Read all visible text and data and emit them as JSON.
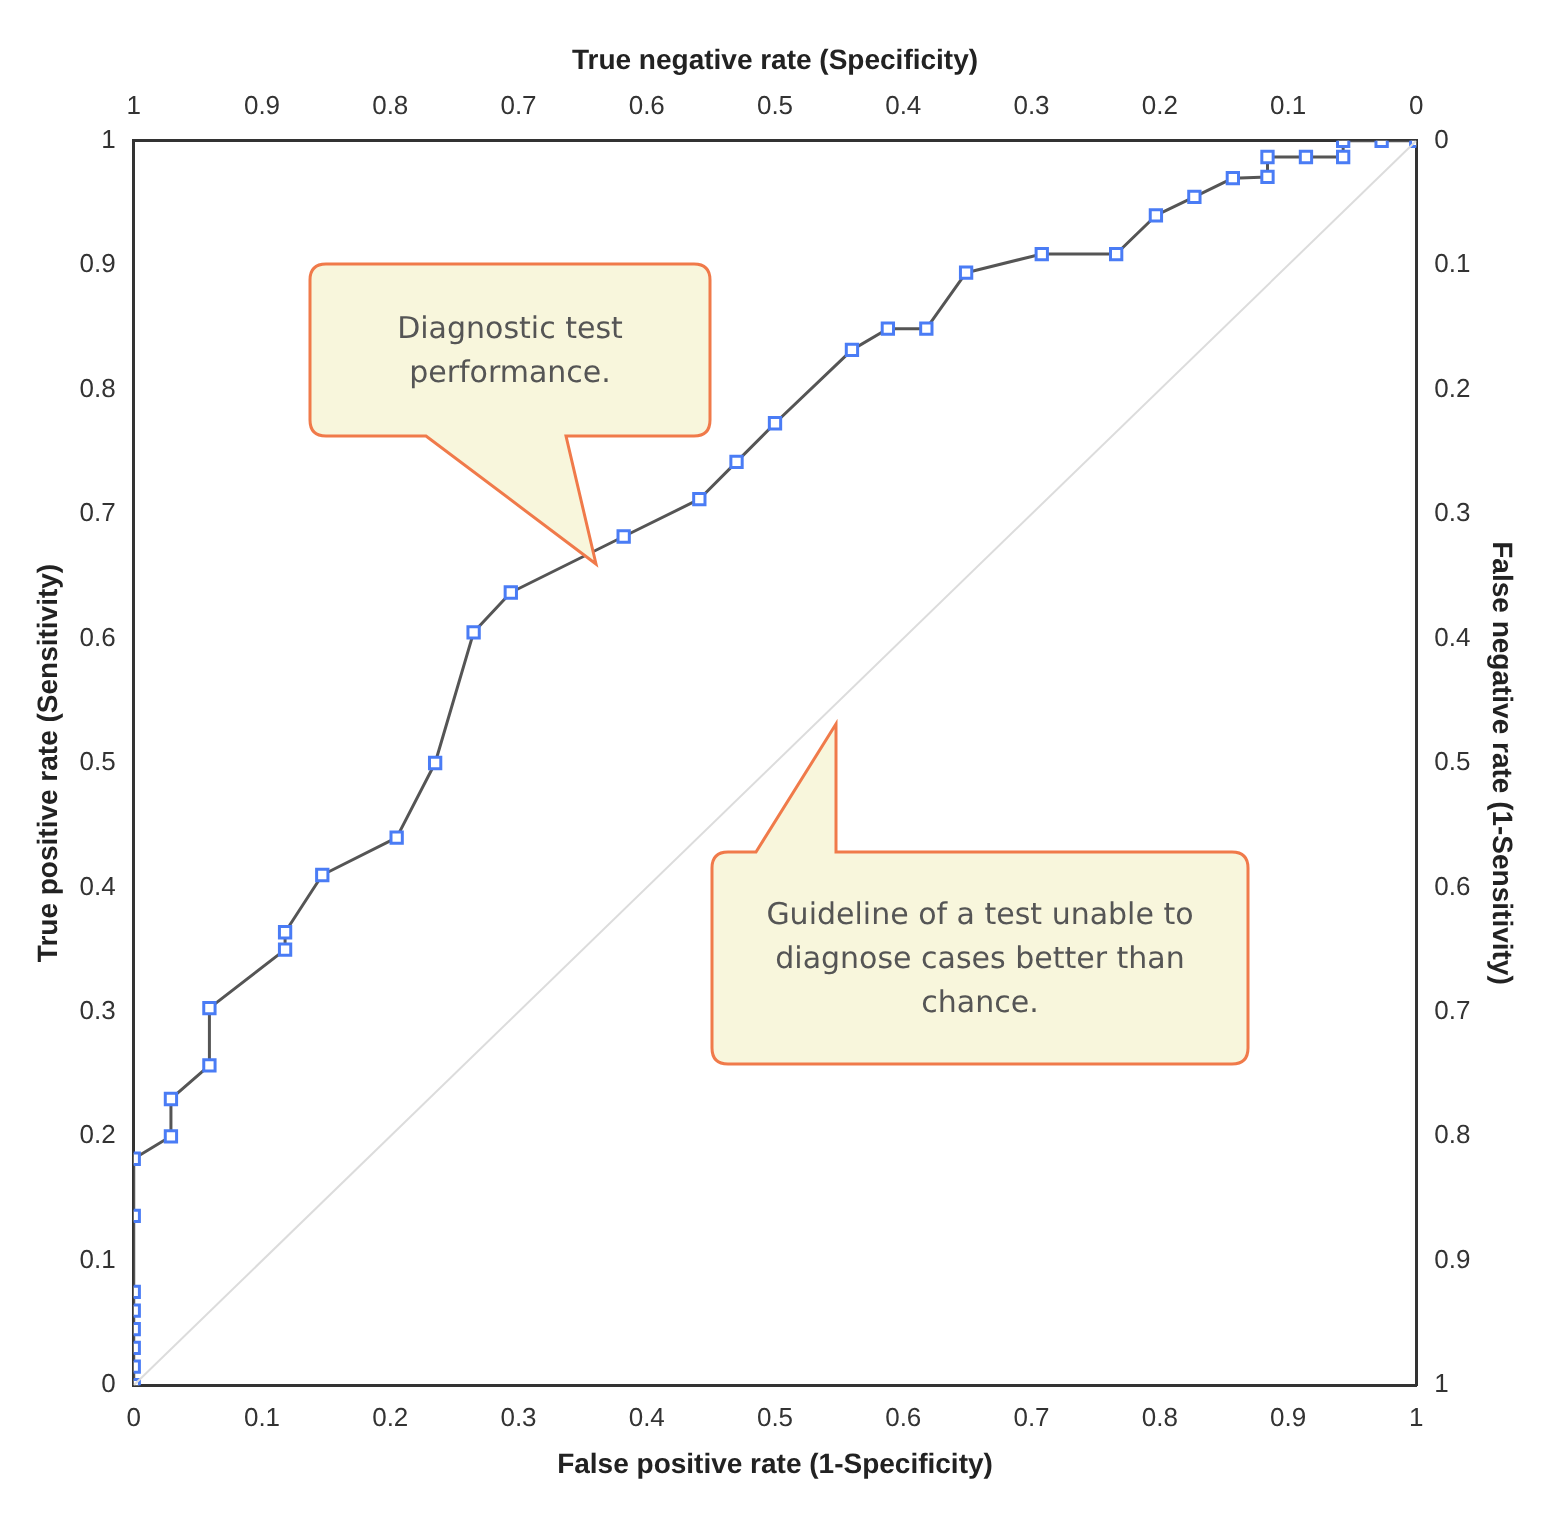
{
  "chart_data": {
    "type": "line",
    "xlabel": "False positive rate (1-Specificity)",
    "ylabel": "True positive rate (Sensitivity)",
    "x2label": "True negative rate (Specificity)",
    "y2label": "False negative rate (1-Sensitivity)",
    "xlim": [
      0,
      1
    ],
    "xticks": [
      0,
      0.1,
      0.2,
      0.3,
      0.4,
      0.5,
      0.6,
      0.7,
      0.8,
      0.9,
      1
    ],
    "ylim": [
      0,
      1
    ],
    "yticks": [
      0,
      0.1,
      0.2,
      0.3,
      0.4,
      0.5,
      0.6,
      0.7,
      0.8,
      0.9,
      1
    ],
    "x2lim": [
      1,
      0
    ],
    "x2ticks": [
      1,
      0.9,
      0.8,
      0.7,
      0.6,
      0.5,
      0.4,
      0.3,
      0.2,
      0.1,
      0
    ],
    "y2lim": [
      1,
      0
    ],
    "y2ticks": [
      1,
      0.9,
      0.8,
      0.7,
      0.6,
      0.5,
      0.4,
      0.3,
      0.2,
      0.1,
      0
    ],
    "grid": false,
    "legend": false,
    "line_style": "solid",
    "series": [
      {
        "color": "#4a7cf5",
        "marker": "square",
        "x": [
          0,
          0,
          0,
          0,
          0,
          0,
          0,
          0,
          0.029,
          0.029,
          0.059,
          0.059,
          0.118,
          0.118,
          0.147,
          0.205,
          0.235,
          0.265,
          0.294,
          0.382,
          0.441,
          0.47,
          0.5,
          0.56,
          0.588,
          0.618,
          0.649,
          0.708,
          0.766,
          0.797,
          0.827,
          0.857,
          0.884,
          0.884,
          0.914,
          0.943,
          0.943,
          0.973,
          1
        ],
        "values": [
          0,
          0.015,
          0.03,
          0.045,
          0.06,
          0.075,
          0.136,
          0.182,
          0.2,
          0.23,
          0.257,
          0.303,
          0.35,
          0.364,
          0.41,
          0.44,
          0.5,
          0.605,
          0.637,
          0.682,
          0.712,
          0.742,
          0.773,
          0.832,
          0.849,
          0.849,
          0.894,
          0.909,
          0.909,
          0.94,
          0.955,
          0.97,
          0.971,
          0.987,
          0.987,
          0.987,
          1,
          1,
          1
        ]
      },
      {
        "color": "#dcdcdc",
        "marker": "none",
        "x": [
          0,
          1
        ],
        "values": [
          0,
          1
        ]
      }
    ],
    "annotations": [
      "Diagnostic test performance.",
      "Guideline of a test unable to diagnose cases better than chance."
    ]
  }
}
